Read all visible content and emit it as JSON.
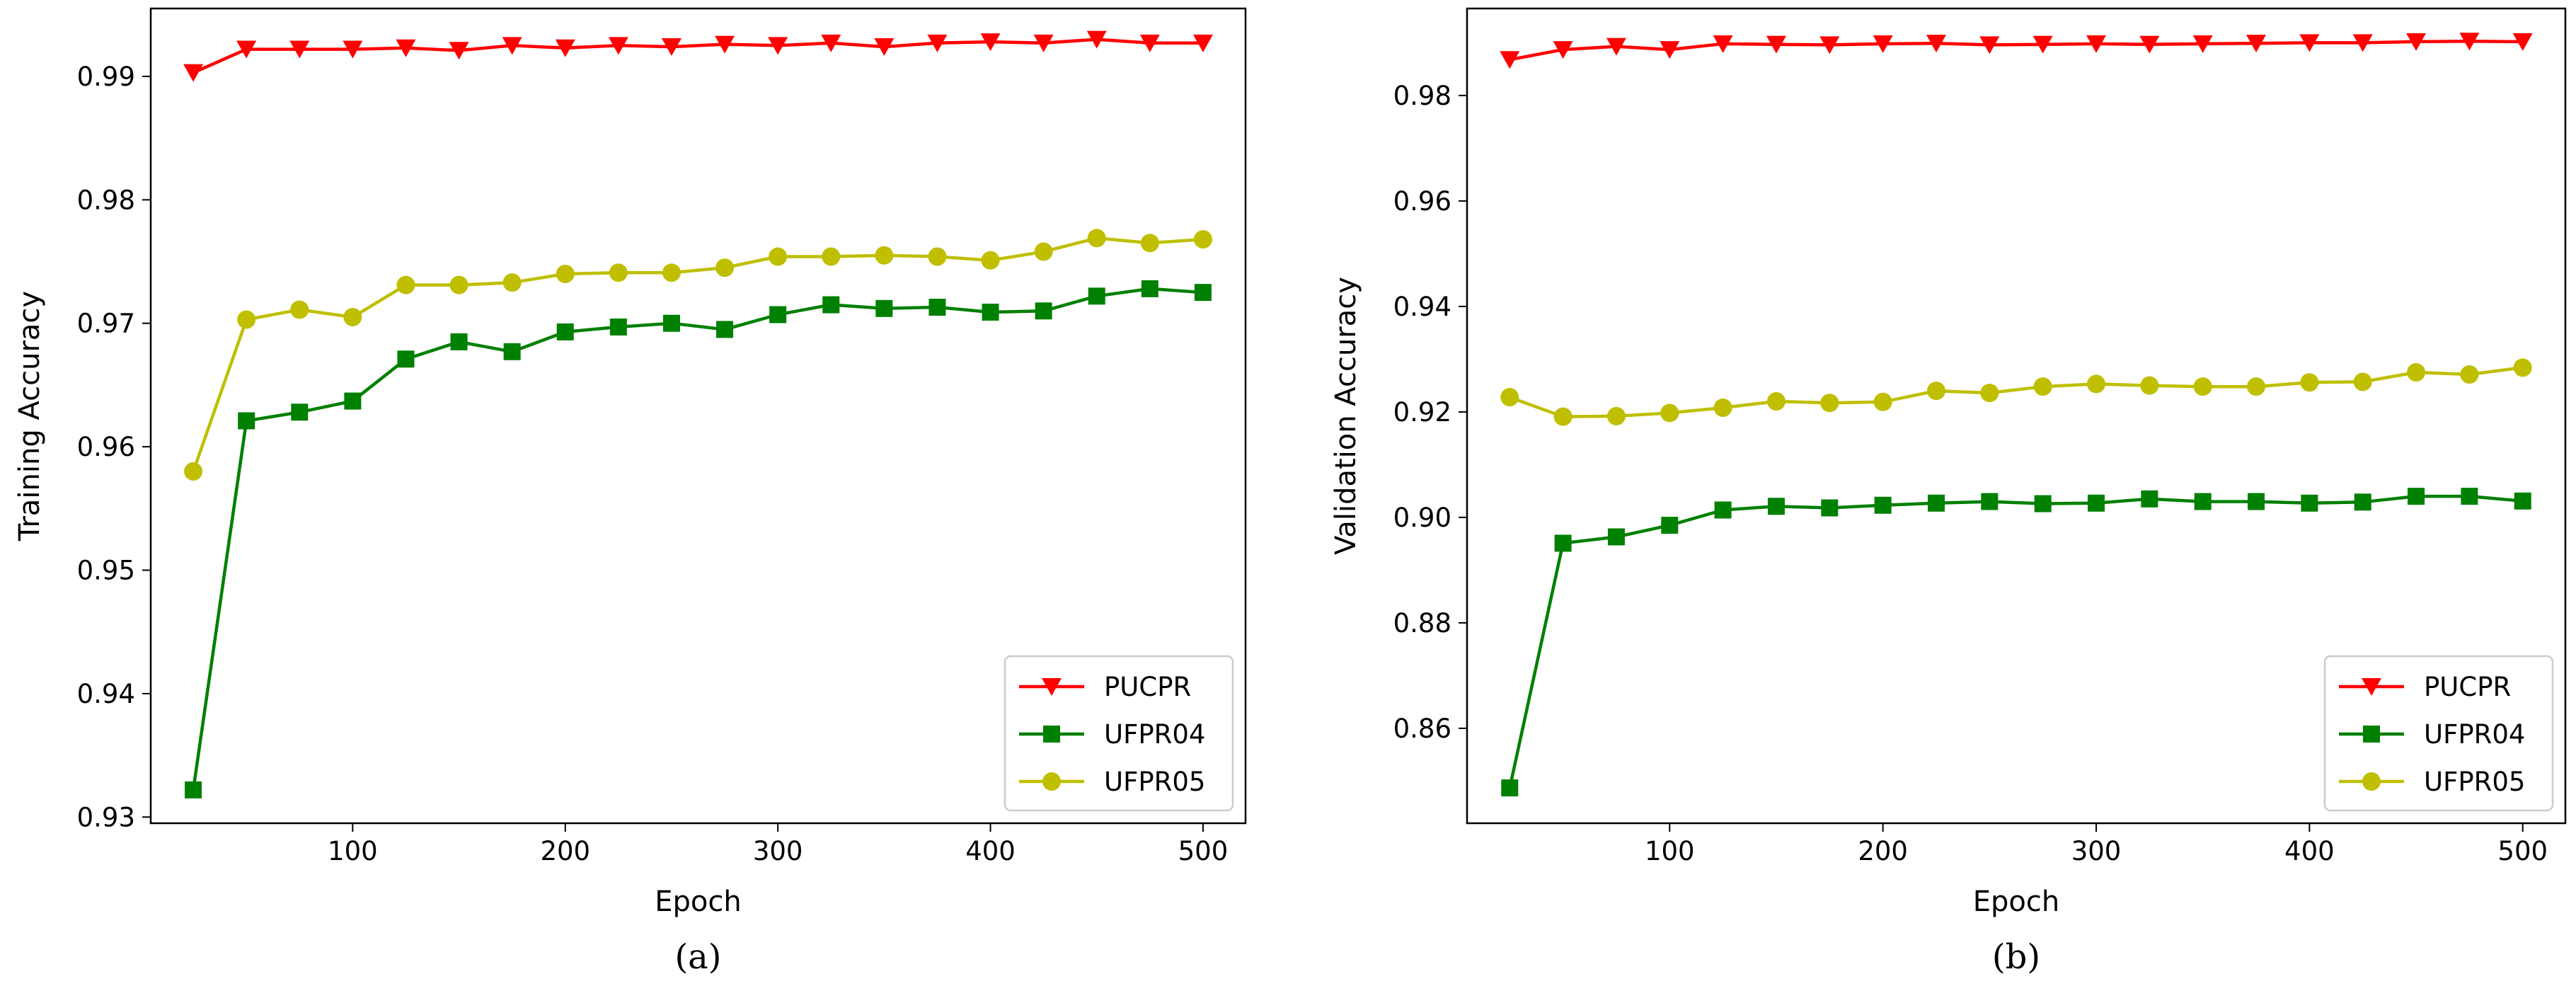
{
  "chart_data": [
    {
      "type": "line",
      "caption": "(a)",
      "xlabel": "Epoch",
      "ylabel": "Training Accuracy",
      "xlim": [
        5,
        520
      ],
      "ylim": [
        0.9295,
        0.9955
      ],
      "xticks": [
        100,
        200,
        300,
        400,
        500
      ],
      "xtick_labels": [
        "100",
        "200",
        "300",
        "400",
        "500"
      ],
      "yticks": [
        0.93,
        0.94,
        0.95,
        0.96,
        0.97,
        0.98,
        0.99
      ],
      "ytick_labels": [
        "0.93",
        "0.94",
        "0.95",
        "0.96",
        "0.97",
        "0.98",
        "0.99"
      ],
      "legend_position": "lower-right",
      "x": [
        25,
        50,
        75,
        100,
        125,
        150,
        175,
        200,
        225,
        250,
        275,
        300,
        325,
        350,
        375,
        400,
        425,
        450,
        475,
        500
      ],
      "series": [
        {
          "name": "PUCPR",
          "color": "#ff0000",
          "marker": "triangle-down",
          "values": [
            0.9903,
            0.9922,
            0.9922,
            0.9922,
            0.9923,
            0.9921,
            0.9925,
            0.9923,
            0.9925,
            0.9924,
            0.9926,
            0.9925,
            0.9927,
            0.9924,
            0.9927,
            0.9928,
            0.9927,
            0.993,
            0.9927,
            0.9927
          ]
        },
        {
          "name": "UFPR04",
          "color": "#008000",
          "marker": "square",
          "values": [
            0.9322,
            0.9621,
            0.9628,
            0.9637,
            0.9671,
            0.9685,
            0.9677,
            0.9693,
            0.9697,
            0.97,
            0.9695,
            0.9707,
            0.9715,
            0.9712,
            0.9713,
            0.9709,
            0.971,
            0.9722,
            0.9728,
            0.9725
          ]
        },
        {
          "name": "UFPR05",
          "color": "#bfbf00",
          "marker": "circle",
          "values": [
            0.958,
            0.9703,
            0.9711,
            0.9705,
            0.9731,
            0.9731,
            0.9733,
            0.974,
            0.9741,
            0.9741,
            0.9745,
            0.9754,
            0.9754,
            0.9755,
            0.9754,
            0.9751,
            0.9758,
            0.9769,
            0.9765,
            0.9768
          ]
        }
      ]
    },
    {
      "type": "line",
      "caption": "(b)",
      "xlabel": "Epoch",
      "ylabel": "Validation Accuracy",
      "xlim": [
        5,
        520
      ],
      "ylim": [
        0.842,
        0.9965
      ],
      "xticks": [
        100,
        200,
        300,
        400,
        500
      ],
      "xtick_labels": [
        "100",
        "200",
        "300",
        "400",
        "500"
      ],
      "yticks": [
        0.86,
        0.88,
        0.9,
        0.92,
        0.94,
        0.96,
        0.98
      ],
      "ytick_labels": [
        "0.86",
        "0.88",
        "0.90",
        "0.92",
        "0.94",
        "0.96",
        "0.98"
      ],
      "legend_position": "lower-right",
      "x": [
        25,
        50,
        75,
        100,
        125,
        150,
        175,
        200,
        225,
        250,
        275,
        300,
        325,
        350,
        375,
        400,
        425,
        450,
        475,
        500
      ],
      "series": [
        {
          "name": "PUCPR",
          "color": "#ff0000",
          "marker": "triangle-down",
          "values": [
            0.9868,
            0.9887,
            0.9893,
            0.9887,
            0.9898,
            0.9897,
            0.9896,
            0.9898,
            0.9899,
            0.9896,
            0.9897,
            0.9898,
            0.9897,
            0.9898,
            0.9899,
            0.99,
            0.99,
            0.9902,
            0.9903,
            0.9902
          ]
        },
        {
          "name": "UFPR04",
          "color": "#008000",
          "marker": "square",
          "values": [
            0.8487,
            0.8951,
            0.8963,
            0.8985,
            0.9014,
            0.9021,
            0.9018,
            0.9023,
            0.9027,
            0.903,
            0.9026,
            0.9027,
            0.9035,
            0.903,
            0.903,
            0.9027,
            0.9029,
            0.904,
            0.904,
            0.9031
          ]
        },
        {
          "name": "UFPR05",
          "color": "#bfbf00",
          "marker": "circle",
          "values": [
            0.9228,
            0.9191,
            0.9192,
            0.9198,
            0.9208,
            0.922,
            0.9217,
            0.9219,
            0.924,
            0.9236,
            0.9248,
            0.9253,
            0.925,
            0.9248,
            0.9248,
            0.9256,
            0.9257,
            0.9275,
            0.9271,
            0.9284
          ]
        }
      ]
    }
  ]
}
